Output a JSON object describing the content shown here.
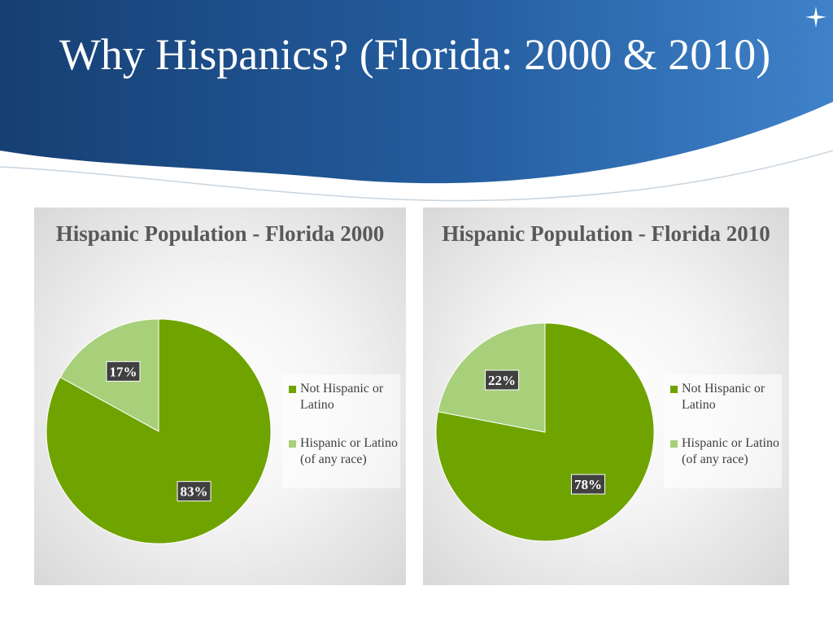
{
  "slide": {
    "title": "Why Hispanics? (Florida: 2000 & 2010)"
  },
  "colors": {
    "header_dark": "#1c4f8a",
    "header_light": "#3a78bf",
    "not_hispanic": "#6fa300",
    "hispanic": "#a8cf7a"
  },
  "chart_data": [
    {
      "type": "pie",
      "title": "Hispanic Population - Florida 2000",
      "categories": [
        "Not Hispanic or Latino",
        "Hispanic or Latino (of any race)"
      ],
      "values": [
        83,
        17
      ],
      "data_labels": [
        "83%",
        "17%"
      ],
      "legend": "right"
    },
    {
      "type": "pie",
      "title": "Hispanic Population - Florida 2010",
      "categories": [
        "Not Hispanic or Latino",
        "Hispanic or Latino (of any race)"
      ],
      "values": [
        78,
        22
      ],
      "data_labels": [
        "78%",
        "22%"
      ],
      "legend": "right"
    }
  ]
}
